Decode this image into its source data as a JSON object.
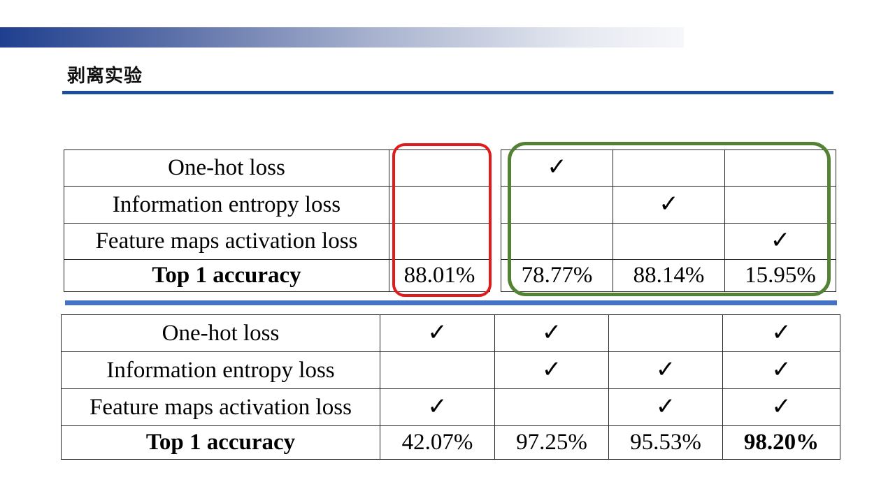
{
  "slide": {
    "title": "剥离实验",
    "colors": {
      "top_band": "#1f3f8f",
      "title_rule": "#1e4f96",
      "mid_rule": "#4472c4",
      "red_highlight": "#e01b1b",
      "green_highlight": "#548235"
    }
  },
  "check_symbol": "✓",
  "table_top": {
    "rows": [
      {
        "label": "One-hot loss",
        "cells": [
          "",
          "✓",
          "",
          ""
        ]
      },
      {
        "label": "Information entropy loss",
        "cells": [
          "",
          "",
          "✓",
          ""
        ]
      },
      {
        "label": "Feature maps activation loss",
        "cells": [
          "",
          "",
          "",
          "✓"
        ]
      },
      {
        "label": "Top 1 accuracy",
        "cells": [
          "88.01%",
          "78.77%",
          "88.14%",
          "15.95%"
        ]
      }
    ]
  },
  "table_bottom": {
    "rows": [
      {
        "label": "One-hot loss",
        "cells": [
          "✓",
          "✓",
          "",
          "✓"
        ]
      },
      {
        "label": "Information entropy loss",
        "cells": [
          "",
          "✓",
          "✓",
          "✓"
        ]
      },
      {
        "label": "Feature maps activation loss",
        "cells": [
          "✓",
          "",
          "✓",
          "✓"
        ]
      },
      {
        "label": "Top 1 accuracy",
        "cells": [
          "42.07%",
          "97.25%",
          "95.53%",
          "98.20%"
        ],
        "best_index": 3
      }
    ]
  }
}
